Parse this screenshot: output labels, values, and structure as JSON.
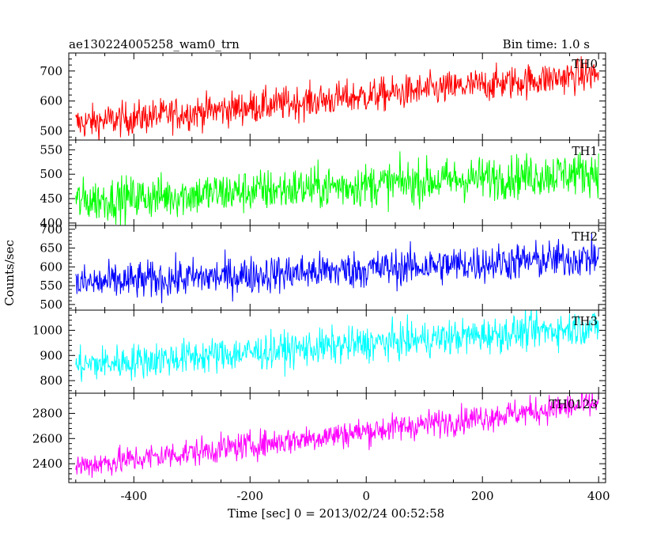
{
  "header": {
    "title": "ae130224005258_wam0_trn",
    "bin_time": "Bin time: 1.0 s"
  },
  "xlabel": "Time [sec] 0 = 2013/02/24 00:52:58",
  "ylabel": "Counts/sec",
  "chart_data": [
    {
      "type": "line",
      "name": "TH0",
      "color": "#ff0000",
      "x_range": [
        -500,
        400
      ],
      "xlim": [
        -512,
        412
      ],
      "ylim": [
        470,
        760
      ],
      "yticks": [
        500,
        600,
        700
      ],
      "start": 525,
      "end": 690,
      "noise": 28,
      "title": "",
      "xlabel": "",
      "ylabel": ""
    },
    {
      "type": "line",
      "name": "TH1",
      "color": "#00ff00",
      "x_range": [
        -500,
        400
      ],
      "xlim": [
        -512,
        412
      ],
      "ylim": [
        395,
        570
      ],
      "yticks": [
        400,
        450,
        500,
        550
      ],
      "start": 445,
      "end": 505,
      "noise": 22,
      "title": "",
      "xlabel": "",
      "ylabel": ""
    },
    {
      "type": "line",
      "name": "TH2",
      "color": "#0000ff",
      "x_range": [
        -500,
        400
      ],
      "xlim": [
        -512,
        412
      ],
      "ylim": [
        485,
        710
      ],
      "yticks": [
        500,
        550,
        600,
        650,
        700
      ],
      "start": 555,
      "end": 625,
      "noise": 25,
      "title": "",
      "xlabel": "",
      "ylabel": ""
    },
    {
      "type": "line",
      "name": "TH3",
      "color": "#00ffff",
      "x_range": [
        -500,
        400
      ],
      "xlim": [
        -512,
        412
      ],
      "ylim": [
        750,
        1080
      ],
      "yticks": [
        800,
        900,
        1000
      ],
      "start": 860,
      "end": 1015,
      "noise": 35,
      "title": "",
      "xlabel": "",
      "ylabel": ""
    },
    {
      "type": "line",
      "name": "TH0123",
      "color": "#ff00ff",
      "x_range": [
        -500,
        400
      ],
      "xlim": [
        -512,
        412
      ],
      "ylim": [
        2250,
        2960
      ],
      "yticks": [
        2400,
        2600,
        2800
      ],
      "start": 2380,
      "end": 2880,
      "noise": 55,
      "title": "",
      "xlabel": "",
      "ylabel": ""
    }
  ],
  "xticks": [
    -400,
    -200,
    0,
    200,
    400
  ]
}
